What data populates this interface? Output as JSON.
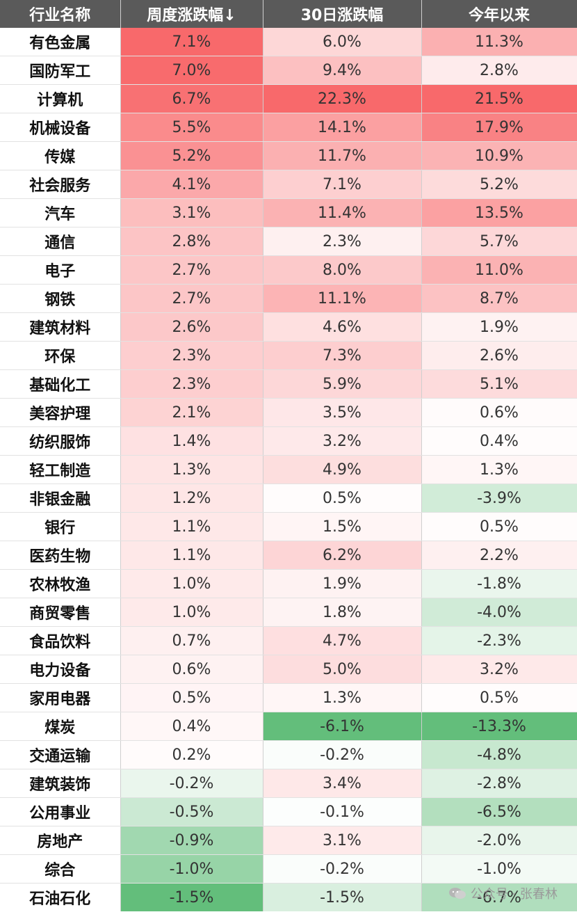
{
  "chart_data": {
    "type": "table",
    "columns": [
      "行业名称",
      "周度涨跌幅↓",
      "30日涨跌幅",
      "今年以来"
    ],
    "rows": [
      {
        "name": "有色金属",
        "weekly": "7.1%",
        "d30": "6.0%",
        "ytd": "11.3%"
      },
      {
        "name": "国防军工",
        "weekly": "7.0%",
        "d30": "9.4%",
        "ytd": "2.8%"
      },
      {
        "name": "计算机",
        "weekly": "6.7%",
        "d30": "22.3%",
        "ytd": "21.5%"
      },
      {
        "name": "机械设备",
        "weekly": "5.5%",
        "d30": "14.1%",
        "ytd": "17.9%"
      },
      {
        "name": "传媒",
        "weekly": "5.2%",
        "d30": "11.7%",
        "ytd": "10.9%"
      },
      {
        "name": "社会服务",
        "weekly": "4.1%",
        "d30": "7.1%",
        "ytd": "5.2%"
      },
      {
        "name": "汽车",
        "weekly": "3.1%",
        "d30": "11.4%",
        "ytd": "13.5%"
      },
      {
        "name": "通信",
        "weekly": "2.8%",
        "d30": "2.3%",
        "ytd": "5.7%"
      },
      {
        "name": "电子",
        "weekly": "2.7%",
        "d30": "8.0%",
        "ytd": "11.0%"
      },
      {
        "name": "钢铁",
        "weekly": "2.7%",
        "d30": "11.1%",
        "ytd": "8.7%"
      },
      {
        "name": "建筑材料",
        "weekly": "2.6%",
        "d30": "4.6%",
        "ytd": "1.9%"
      },
      {
        "name": "环保",
        "weekly": "2.3%",
        "d30": "7.3%",
        "ytd": "2.6%"
      },
      {
        "name": "基础化工",
        "weekly": "2.3%",
        "d30": "5.9%",
        "ytd": "5.1%"
      },
      {
        "name": "美容护理",
        "weekly": "2.1%",
        "d30": "3.5%",
        "ytd": "0.6%"
      },
      {
        "name": "纺织服饰",
        "weekly": "1.4%",
        "d30": "3.2%",
        "ytd": "0.4%"
      },
      {
        "name": "轻工制造",
        "weekly": "1.3%",
        "d30": "4.9%",
        "ytd": "1.3%"
      },
      {
        "name": "非银金融",
        "weekly": "1.2%",
        "d30": "0.5%",
        "ytd": "-3.9%"
      },
      {
        "name": "银行",
        "weekly": "1.1%",
        "d30": "1.5%",
        "ytd": "0.5%"
      },
      {
        "name": "医药生物",
        "weekly": "1.1%",
        "d30": "6.2%",
        "ytd": "2.2%"
      },
      {
        "name": "农林牧渔",
        "weekly": "1.0%",
        "d30": "1.9%",
        "ytd": "-1.8%"
      },
      {
        "name": "商贸零售",
        "weekly": "1.0%",
        "d30": "1.8%",
        "ytd": "-4.0%"
      },
      {
        "name": "食品饮料",
        "weekly": "0.7%",
        "d30": "4.7%",
        "ytd": "-2.3%"
      },
      {
        "name": "电力设备",
        "weekly": "0.6%",
        "d30": "5.0%",
        "ytd": "3.2%"
      },
      {
        "name": "家用电器",
        "weekly": "0.5%",
        "d30": "1.3%",
        "ytd": "0.5%"
      },
      {
        "name": "煤炭",
        "weekly": "0.4%",
        "d30": "-6.1%",
        "ytd": "-13.3%"
      },
      {
        "name": "交通运输",
        "weekly": "0.2%",
        "d30": "-0.2%",
        "ytd": "-4.8%"
      },
      {
        "name": "建筑装饰",
        "weekly": "-0.2%",
        "d30": "3.4%",
        "ytd": "-2.8%"
      },
      {
        "name": "公用事业",
        "weekly": "-0.5%",
        "d30": "-0.1%",
        "ytd": "-6.5%"
      },
      {
        "name": "房地产",
        "weekly": "-0.9%",
        "d30": "3.1%",
        "ytd": "-2.0%"
      },
      {
        "name": "综合",
        "weekly": "-1.0%",
        "d30": "-0.2%",
        "ytd": "-1.0%"
      },
      {
        "name": "石油石化",
        "weekly": "-1.5%",
        "d30": "-1.5%",
        "ytd": "-6.7%"
      }
    ],
    "color_scale": {
      "positive": "#f8696b",
      "neutral": "#ffffff",
      "negative": "#63be7b"
    }
  },
  "watermark": {
    "text": "公众号 · 张春林",
    "icon": "wechat-icon"
  }
}
